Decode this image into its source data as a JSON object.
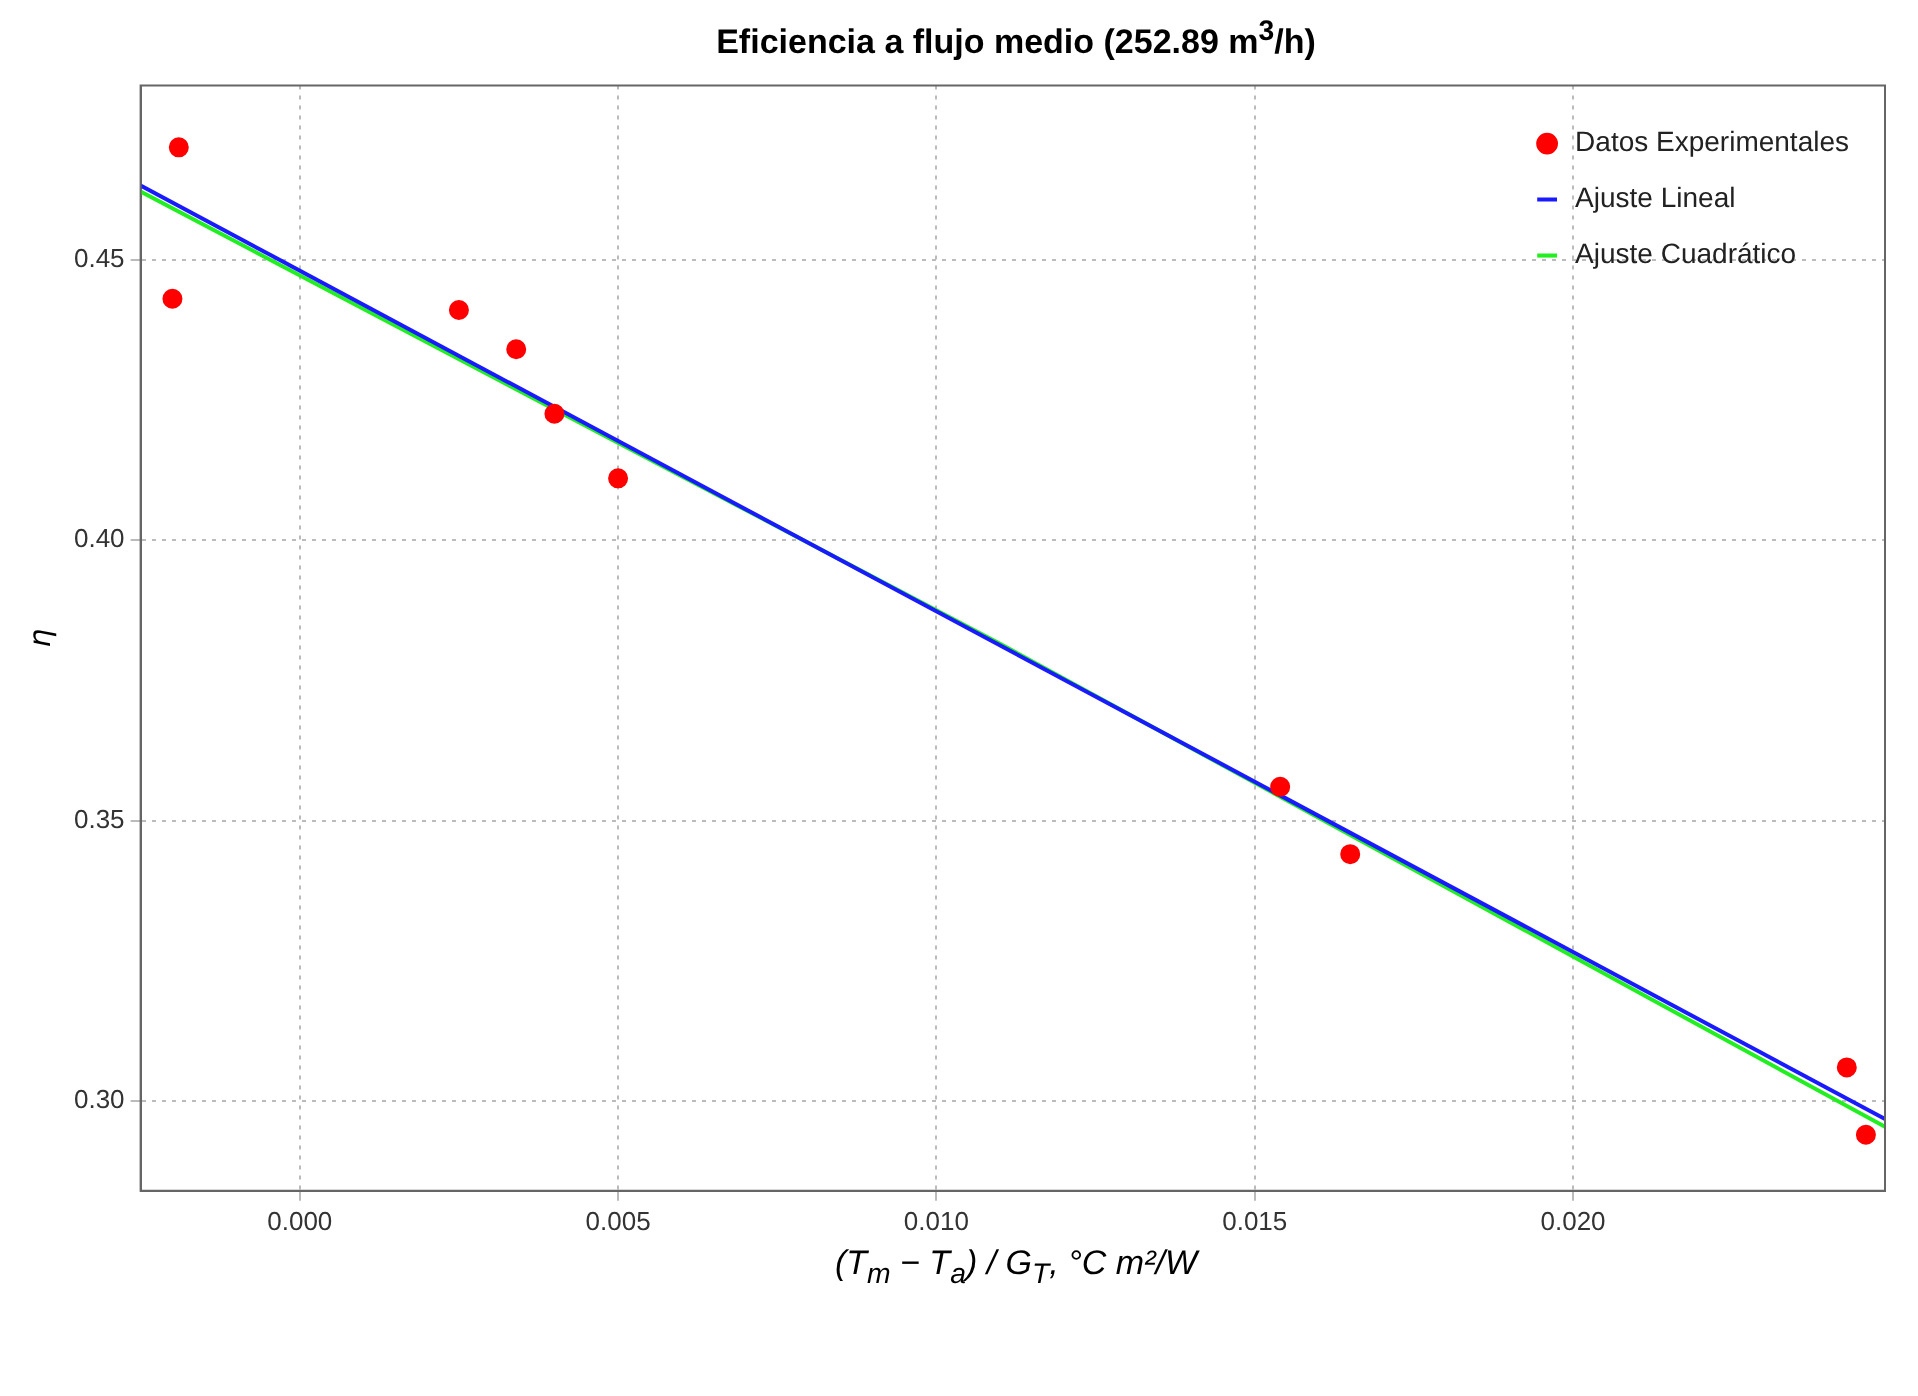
{
  "chart_data": {
    "type": "scatter",
    "title": "Eficiencia a flujo medio (252.89 m$^{3}$/h)",
    "xlabel": "(T$_{m}$ − T$_{a}$) / G$_{T}$, °C m²/W",
    "ylabel": "η",
    "xlim": [
      -0.0025,
      0.0249
    ],
    "ylim": [
      0.284,
      0.481
    ],
    "xticks": [
      {
        "value": 0,
        "label": "0.000"
      },
      0.005,
      {
        "value": 0.01,
        "label": "0.010"
      },
      0.015,
      {
        "value": 0.02,
        "label": "0.020"
      }
    ],
    "yticks": [
      {
        "value": 0.3,
        "label": "0.30"
      },
      0.35,
      {
        "value": 0.4,
        "label": "0.40"
      },
      0.45
    ],
    "grid": true,
    "legend": "top right",
    "series": [
      {
        "name": "Datos Experimentales",
        "marker": "circle",
        "color": "#ff0000",
        "x": [
          -0.0019,
          -0.002,
          0.0025,
          0.0034,
          0.004,
          0.005,
          0.0154,
          0.0165,
          0.0243,
          0.0246
        ],
        "values": [
          0.47,
          0.443,
          0.441,
          0.434,
          0.4225,
          0.411,
          0.356,
          0.344,
          0.306,
          0.294
        ]
      },
      {
        "name": "Ajuste Lineal",
        "type": "line",
        "color": "#1a1aff",
        "x": [
          -0.0025,
          0.0249
        ],
        "values": [
          0.4632,
          0.2968
        ]
      },
      {
        "name": "Ajuste Cuadrático",
        "type": "line",
        "color": "#22ee22",
        "x": [
          -0.0025,
          0.011,
          0.0249
        ],
        "values": [
          0.4621,
          0.3815,
          0.2954
        ]
      }
    ]
  }
}
